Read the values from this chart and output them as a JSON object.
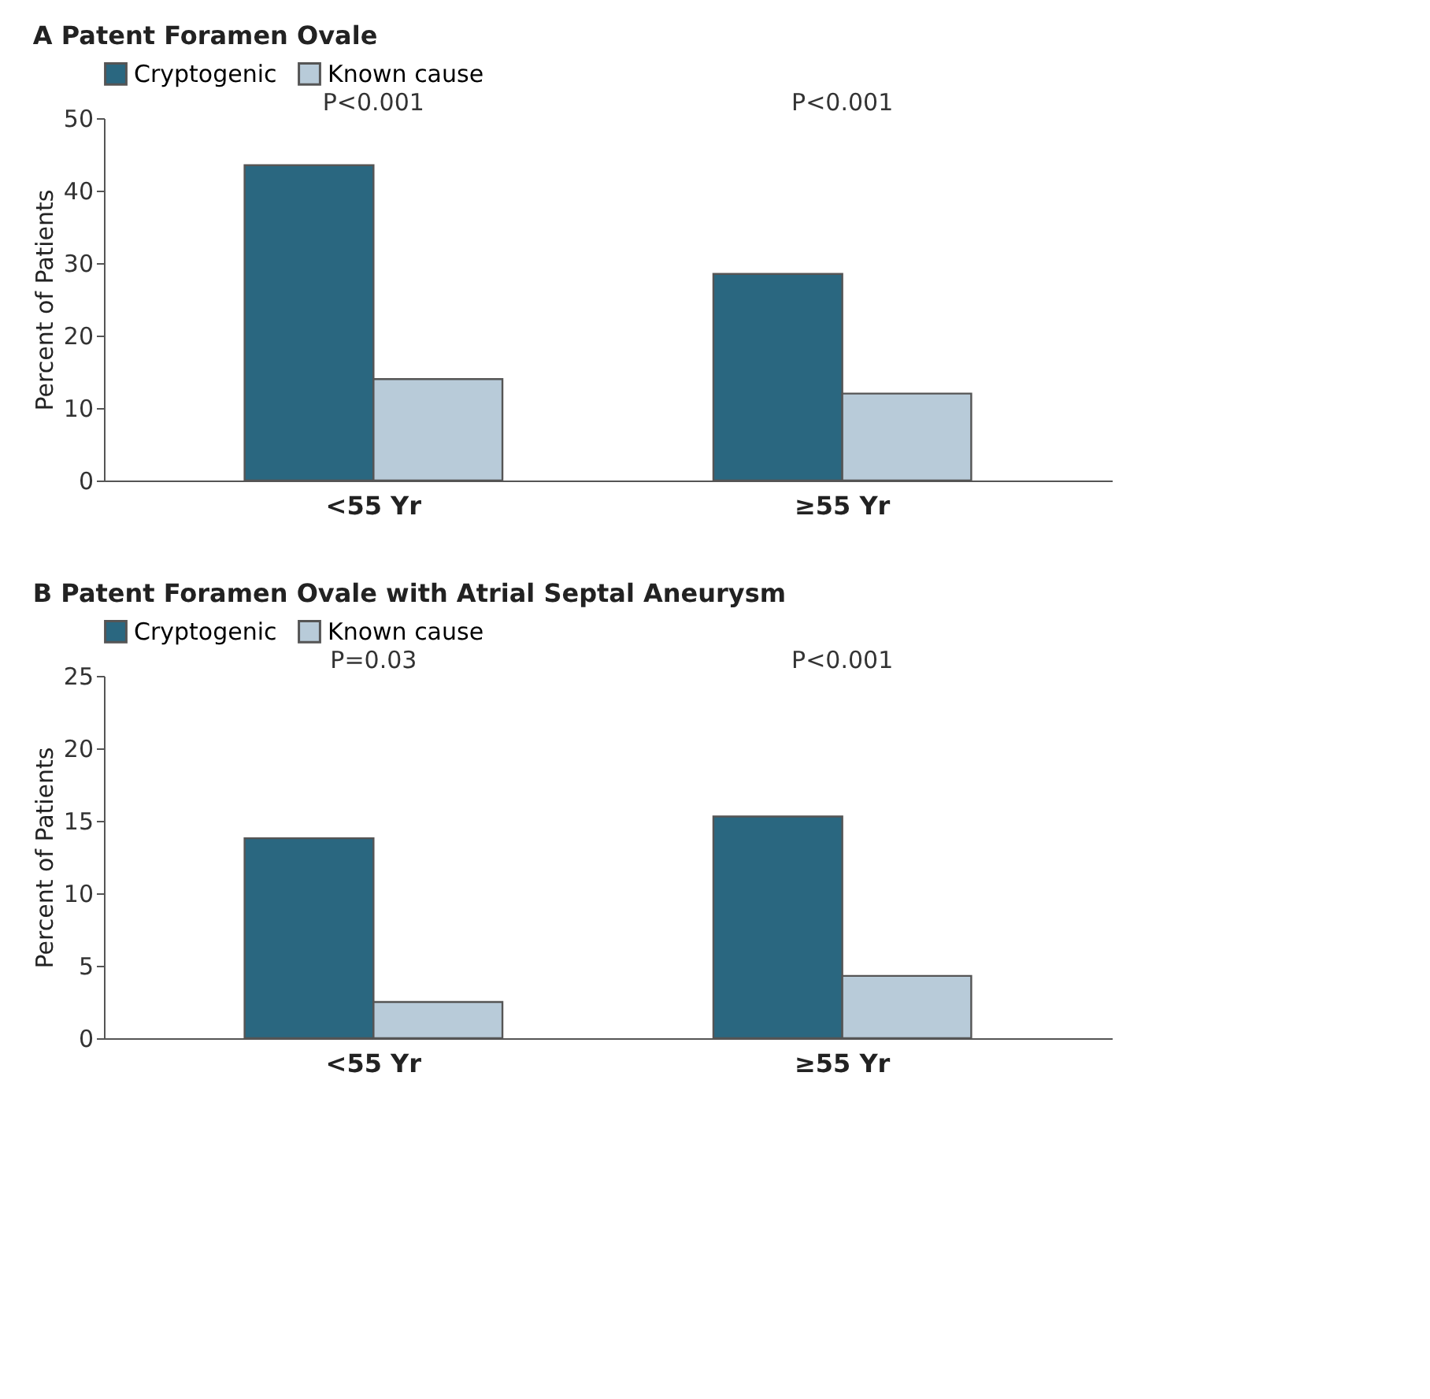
{
  "chart_data": [
    {
      "type": "bar",
      "title": "A  Patent Foramen Ovale",
      "ylabel": "Percent of Patients",
      "categories": [
        "<55 Yr",
        "≥55 Yr"
      ],
      "series": [
        {
          "name": "Cryptogenic",
          "color": "#2a6780",
          "values": [
            43.5,
            28.5
          ]
        },
        {
          "name": "Known cause",
          "color": "#b8cbd9",
          "values": [
            14,
            12
          ]
        }
      ],
      "ylim": [
        0,
        50
      ],
      "yticks": [
        0,
        10,
        20,
        30,
        40,
        50
      ],
      "legend": "top",
      "grid": false,
      "annotations": [
        "P<0.001",
        "P<0.001"
      ]
    },
    {
      "type": "bar",
      "title": "B  Patent Foramen Ovale with Atrial Septal Aneurysm",
      "ylabel": "Percent of Patients",
      "categories": [
        "<55 Yr",
        "≥55 Yr"
      ],
      "series": [
        {
          "name": "Cryptogenic",
          "color": "#2a6780",
          "values": [
            13.8,
            15.3
          ]
        },
        {
          "name": "Known cause",
          "color": "#b8cbd9",
          "values": [
            2.5,
            4.3
          ]
        }
      ],
      "ylim": [
        0,
        25
      ],
      "yticks": [
        0,
        5,
        10,
        15,
        20,
        25
      ],
      "legend": "top",
      "grid": false,
      "annotations": [
        "P=0.03",
        "P<0.001"
      ]
    }
  ]
}
